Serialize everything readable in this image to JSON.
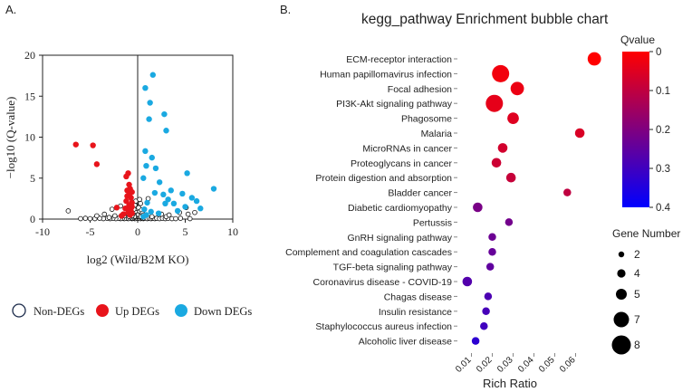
{
  "chart_data": [
    {
      "panel": "A.",
      "type": "scatter",
      "title": "",
      "xlabel": "log2 (Wild/B2M KO)",
      "ylabel": "−log10 (Q-value)",
      "xlim": [
        -10,
        10
      ],
      "ylim": [
        0,
        20
      ],
      "xticks": [
        -10,
        -5,
        0,
        5,
        10
      ],
      "yticks": [
        0,
        5,
        10,
        15,
        20
      ],
      "vline": 0,
      "legend": [
        {
          "label": "Non-DEGs",
          "color": "#ffffff",
          "edge": "#1b2a4a"
        },
        {
          "label": "Up DEGs",
          "color": "#e8141b",
          "edge": "#e8141b"
        },
        {
          "label": "Down DEGs",
          "color": "#1aa9e1",
          "edge": "#1aa9e1"
        }
      ],
      "series": [
        {
          "name": "Up DEGs",
          "color": "#e8141b",
          "points": [
            [
              -6.5,
              9.1
            ],
            [
              -4.7,
              9.0
            ],
            [
              -4.3,
              6.7
            ],
            [
              -2.2,
              1.4
            ],
            [
              -1.2,
              5.2
            ],
            [
              -1.0,
              5.6
            ],
            [
              -0.9,
              4.2
            ],
            [
              -1.1,
              3.5
            ],
            [
              -0.8,
              3.7
            ],
            [
              -0.9,
              3.0
            ],
            [
              -0.7,
              2.6
            ],
            [
              -1.2,
              2.2
            ],
            [
              -0.6,
              2.0
            ],
            [
              -0.9,
              1.7
            ],
            [
              -1.3,
              1.3
            ],
            [
              -0.7,
              1.0
            ],
            [
              -0.6,
              1.5
            ],
            [
              -1.0,
              0.8
            ],
            [
              -1.5,
              0.6
            ],
            [
              -0.8,
              0.5
            ],
            [
              -0.6,
              0.7
            ],
            [
              -1.7,
              0.4
            ],
            [
              -0.9,
              1.1
            ],
            [
              -1.1,
              2.8
            ],
            [
              -0.6,
              3.3
            ]
          ]
        },
        {
          "name": "Down DEGs",
          "color": "#1aa9e1",
          "points": [
            [
              1.6,
              17.6
            ],
            [
              0.8,
              16.0
            ],
            [
              1.3,
              14.2
            ],
            [
              2.8,
              12.8
            ],
            [
              1.2,
              12.2
            ],
            [
              3.0,
              10.8
            ],
            [
              0.8,
              8.3
            ],
            [
              1.5,
              7.5
            ],
            [
              1.9,
              6.2
            ],
            [
              0.9,
              6.5
            ],
            [
              2.3,
              4.5
            ],
            [
              5.2,
              5.6
            ],
            [
              0.6,
              5.0
            ],
            [
              1.8,
              3.2
            ],
            [
              3.5,
              3.5
            ],
            [
              3.2,
              2.4
            ],
            [
              2.7,
              3.0
            ],
            [
              4.7,
              3.1
            ],
            [
              5.7,
              2.6
            ],
            [
              8.0,
              3.7
            ],
            [
              6.2,
              2.2
            ],
            [
              5.0,
              1.5
            ],
            [
              2.9,
              1.9
            ],
            [
              3.8,
              1.9
            ],
            [
              0.7,
              1.2
            ],
            [
              1.0,
              2.0
            ],
            [
              1.4,
              0.9
            ],
            [
              0.9,
              0.5
            ],
            [
              2.2,
              0.7
            ],
            [
              4.2,
              1.0
            ],
            [
              6.6,
              1.3
            ],
            [
              0.6,
              0.3
            ]
          ]
        },
        {
          "name": "Non-DEGs",
          "color": "#ffffff",
          "points": [
            [
              -0.1,
              0.1
            ],
            [
              0.1,
              0.1
            ],
            [
              -0.2,
              0.2
            ],
            [
              0.2,
              0.2
            ],
            [
              -0.3,
              0.05
            ],
            [
              0.3,
              0.05
            ],
            [
              -0.4,
              0.15
            ],
            [
              0.4,
              0.15
            ],
            [
              -0.5,
              0.1
            ],
            [
              0.5,
              0.1
            ],
            [
              -0.15,
              0.35
            ],
            [
              0.15,
              0.35
            ],
            [
              -0.25,
              0.45
            ],
            [
              0.25,
              0.45
            ],
            [
              -0.05,
              0.6
            ],
            [
              0.05,
              0.6
            ],
            [
              -0.35,
              0.3
            ],
            [
              0.35,
              0.3
            ],
            [
              -0.6,
              0.05
            ],
            [
              0.6,
              0.05
            ],
            [
              -0.7,
              0.1
            ],
            [
              0.7,
              0.1
            ],
            [
              -0.8,
              0.2
            ],
            [
              0.8,
              0.2
            ],
            [
              -1.0,
              0.05
            ],
            [
              1.0,
              0.05
            ],
            [
              -1.2,
              0.1
            ],
            [
              1.2,
              0.1
            ],
            [
              -1.4,
              0.05
            ],
            [
              1.4,
              0.05
            ],
            [
              -1.6,
              0.1
            ],
            [
              1.6,
              0.1
            ],
            [
              -1.8,
              0.05
            ],
            [
              1.8,
              0.05
            ],
            [
              -2.0,
              0.1
            ],
            [
              2.0,
              0.1
            ],
            [
              -2.3,
              0.05
            ],
            [
              2.3,
              0.05
            ],
            [
              -2.6,
              0.1
            ],
            [
              2.6,
              0.1
            ],
            [
              -2.9,
              0.05
            ],
            [
              2.9,
              0.05
            ],
            [
              -3.2,
              0.1
            ],
            [
              3.2,
              0.1
            ],
            [
              -3.6,
              0.05
            ],
            [
              3.6,
              0.05
            ],
            [
              -4.0,
              0.1
            ],
            [
              4.0,
              0.05
            ],
            [
              -4.5,
              0.05
            ],
            [
              4.5,
              0.1
            ],
            [
              -5.0,
              0.05
            ],
            [
              -5.5,
              0.1
            ],
            [
              5.5,
              0.05
            ],
            [
              -6.0,
              0.05
            ],
            [
              -0.3,
              0.8
            ],
            [
              0.3,
              0.8
            ],
            [
              -0.2,
              1.0
            ],
            [
              0.2,
              1.0
            ],
            [
              -0.1,
              1.3
            ],
            [
              0.1,
              1.4
            ],
            [
              -0.3,
              1.7
            ],
            [
              0.3,
              1.9
            ],
            [
              -0.2,
              2.2
            ],
            [
              0.2,
              2.4
            ],
            [
              -0.4,
              1.2
            ],
            [
              0.4,
              1.1
            ],
            [
              -0.5,
              0.6
            ],
            [
              0.5,
              0.7
            ],
            [
              -0.6,
              0.4
            ],
            [
              0.6,
              0.5
            ],
            [
              -7.3,
              1.0
            ],
            [
              -4.3,
              0.4
            ],
            [
              -3.5,
              0.6
            ],
            [
              -2.7,
              1.2
            ],
            [
              -1.8,
              1.6
            ],
            [
              1.1,
              2.5
            ],
            [
              3.0,
              0.3
            ],
            [
              4.4,
              0.8
            ],
            [
              5.3,
              0.6
            ],
            [
              6.0,
              0.8
            ],
            [
              5.1,
              1.4
            ],
            [
              3.3,
              0.5
            ],
            [
              -2.4,
              0.4
            ],
            [
              -3.0,
              0.2
            ],
            [
              2.5,
              0.6
            ],
            [
              1.5,
              0.3
            ],
            [
              -1.4,
              0.4
            ],
            [
              -0.9,
              0.3
            ]
          ]
        }
      ]
    },
    {
      "panel": "B.",
      "type": "scatter",
      "subtype": "bubble",
      "title": "kegg_pathway Enrichment bubble chart",
      "xlabel": "Rich Ratio",
      "ylabel": "",
      "xlim": [
        0.005,
        0.075
      ],
      "xticks": [
        0.01,
        0.02,
        0.03,
        0.04,
        0.05,
        0.06
      ],
      "xtick_labels": [
        "0.01",
        "0.02",
        "0.03",
        "0.04",
        "0.05",
        "0.06"
      ],
      "colorbar": {
        "title": "Qvalue",
        "ticks": [
          0,
          0.1,
          0.2,
          0.3,
          0.4
        ],
        "tick_labels": [
          "0",
          "0.1",
          "0.2",
          "0.3",
          "0.4"
        ],
        "low_color": "#ff0000",
        "high_color": "#0000ff"
      },
      "size_legend": {
        "title": "Gene Number",
        "values": [
          2,
          4,
          5,
          7,
          8
        ]
      },
      "categories": [
        "ECM-receptor interaction",
        "Human papillomavirus infection",
        "Focal adhesion",
        "PI3K-Akt signaling pathway",
        "Phagosome",
        "Malaria",
        "MicroRNAs in cancer",
        "Proteoglycans in cancer",
        "Protein digestion and absorption",
        "Bladder cancer",
        "Diabetic cardiomyopathy",
        "Pertussis",
        "GnRH signaling pathway",
        "Complement and coagulation cascades",
        "TGF-beta signaling pathway",
        "Coronavirus disease - COVID-19",
        "Chagas disease",
        "Insulin resistance",
        "Staphylococcus aureus infection",
        "Alcoholic liver disease"
      ],
      "rich_ratio": [
        0.069,
        0.024,
        0.032,
        0.021,
        0.03,
        0.062,
        0.025,
        0.022,
        0.029,
        0.056,
        0.013,
        0.028,
        0.02,
        0.02,
        0.019,
        0.008,
        0.018,
        0.017,
        0.016,
        0.012
      ],
      "qvalue": [
        0.0,
        0.02,
        0.03,
        0.04,
        0.05,
        0.06,
        0.07,
        0.08,
        0.09,
        0.1,
        0.21,
        0.22,
        0.23,
        0.24,
        0.25,
        0.27,
        0.28,
        0.29,
        0.3,
        0.33
      ],
      "gene_number": [
        6,
        8,
        6,
        8,
        5,
        4,
        4,
        4,
        4,
        3,
        4,
        3,
        3,
        3,
        3,
        4,
        3,
        3,
        3,
        3
      ]
    }
  ]
}
